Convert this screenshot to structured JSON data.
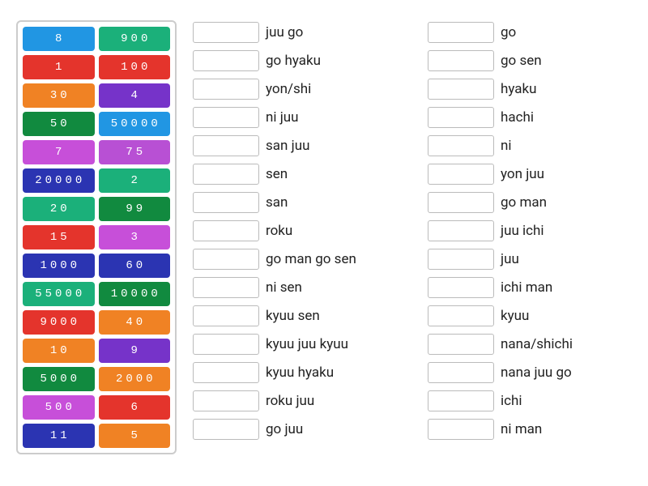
{
  "tiles": [
    {
      "label": "8",
      "color": "#2196e3"
    },
    {
      "label": "900",
      "color": "#1bb07a"
    },
    {
      "label": "1",
      "color": "#e4342c"
    },
    {
      "label": "100",
      "color": "#e4342c"
    },
    {
      "label": "30",
      "color": "#f08224"
    },
    {
      "label": "4",
      "color": "#7633c9"
    },
    {
      "label": "50",
      "color": "#118a3f"
    },
    {
      "label": "50000",
      "color": "#2196e3"
    },
    {
      "label": "7",
      "color": "#c74fd9"
    },
    {
      "label": "75",
      "color": "#b850d4"
    },
    {
      "label": "20000",
      "color": "#2b34b2"
    },
    {
      "label": "2",
      "color": "#1bb07a"
    },
    {
      "label": "20",
      "color": "#1bb07a"
    },
    {
      "label": "99",
      "color": "#118a3f"
    },
    {
      "label": "15",
      "color": "#e4342c"
    },
    {
      "label": "3",
      "color": "#c74fd9"
    },
    {
      "label": "1000",
      "color": "#2b34b2"
    },
    {
      "label": "60",
      "color": "#2b34b2"
    },
    {
      "label": "55000",
      "color": "#1bb07a"
    },
    {
      "label": "10000",
      "color": "#118a3f"
    },
    {
      "label": "9000",
      "color": "#e4342c"
    },
    {
      "label": "40",
      "color": "#f08224"
    },
    {
      "label": "10",
      "color": "#f08224"
    },
    {
      "label": "9",
      "color": "#7633c9"
    },
    {
      "label": "5000",
      "color": "#118a3f"
    },
    {
      "label": "2000",
      "color": "#f08224"
    },
    {
      "label": "500",
      "color": "#c74fd9"
    },
    {
      "label": "6",
      "color": "#e4342c"
    },
    {
      "label": "11",
      "color": "#2b34b2"
    },
    {
      "label": "5",
      "color": "#f08224"
    }
  ],
  "column1": [
    "juu go",
    "go hyaku",
    "yon/shi",
    "ni juu",
    "san juu",
    "sen",
    "san",
    "roku",
    "go man go sen",
    "ni sen",
    "kyuu sen",
    "kyuu juu kyuu",
    "kyuu hyaku",
    "roku juu",
    "go juu"
  ],
  "column2": [
    "go",
    "go sen",
    "hyaku",
    "hachi",
    "ni",
    "yon juu",
    "go man",
    "juu ichi",
    "juu",
    "ichi man",
    "kyuu",
    "nana/shichi",
    "nana juu go",
    "ichi",
    "ni man"
  ],
  "style": {
    "tile_text_color": "#ffffff",
    "slot_border_color": "#bbbbbb",
    "panel_border_color": "#cccccc",
    "label_color": "#222222",
    "label_fontsize": 17,
    "tile_fontsize": 14,
    "background_color": "#ffffff"
  }
}
